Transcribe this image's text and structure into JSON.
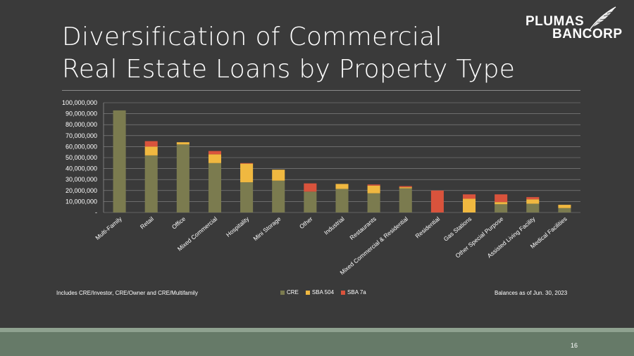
{
  "slide": {
    "title_line1": "Diversification of Commercial",
    "title_line2": "Real Estate Loans by Property Type",
    "logo_line1": "PLUMAS",
    "logo_line2": "BANCORP",
    "logo_icon": "feather-icon",
    "footnote_left": "Includes CRE/Investor, CRE/Owner  and CRE/Multifamily",
    "footnote_right": "Balances as of Jun. 30, 2023",
    "page_number": "16",
    "colors": {
      "background": "#3a3a3a",
      "footer_band": "#667a68",
      "footer_band_light": "#8fa290",
      "gridline": "#8c8c8c"
    }
  },
  "chart_data": {
    "type": "bar",
    "stacked": true,
    "categories": [
      "Multi-Family",
      "Retail",
      "Office",
      "Mixed Commercial",
      "Hospitality",
      "Mini Storage",
      "Other",
      "Industrial",
      "Restaurants",
      "Mixed Commercial & Residential",
      "Residential",
      "Gas Stations",
      "Other Special Purpose",
      "Assisted Living Facility",
      "Medical Facilities"
    ],
    "series": [
      {
        "name": "CRE",
        "color": "#7b7b4f",
        "values": [
          93000000,
          52000000,
          62000000,
          45000000,
          27500000,
          29000000,
          19000000,
          21500000,
          17500000,
          22000000,
          0,
          0,
          7500000,
          8000000,
          4000000
        ]
      },
      {
        "name": "SBA 504",
        "color": "#f0b840",
        "values": [
          0,
          8000000,
          2000000,
          8000000,
          17000000,
          10000000,
          0,
          4500000,
          7000000,
          1000000,
          0,
          12500000,
          2000000,
          4000000,
          3000000
        ]
      },
      {
        "name": "SBA 7a",
        "color": "#d9533c",
        "values": [
          0,
          5000000,
          0,
          3000000,
          500000,
          0,
          7500000,
          0,
          1000000,
          1000000,
          20000000,
          4000000,
          7000000,
          2000000,
          0
        ]
      }
    ],
    "ylim": [
      0,
      100000000
    ],
    "yticks": [
      "-",
      "10,000,000",
      "20,000,000",
      "30,000,000",
      "40,000,000",
      "50,000,000",
      "60,000,000",
      "70,000,000",
      "80,000,000",
      "90,000,000",
      "100,000,000"
    ],
    "grid": true,
    "legend_position": "bottom"
  }
}
